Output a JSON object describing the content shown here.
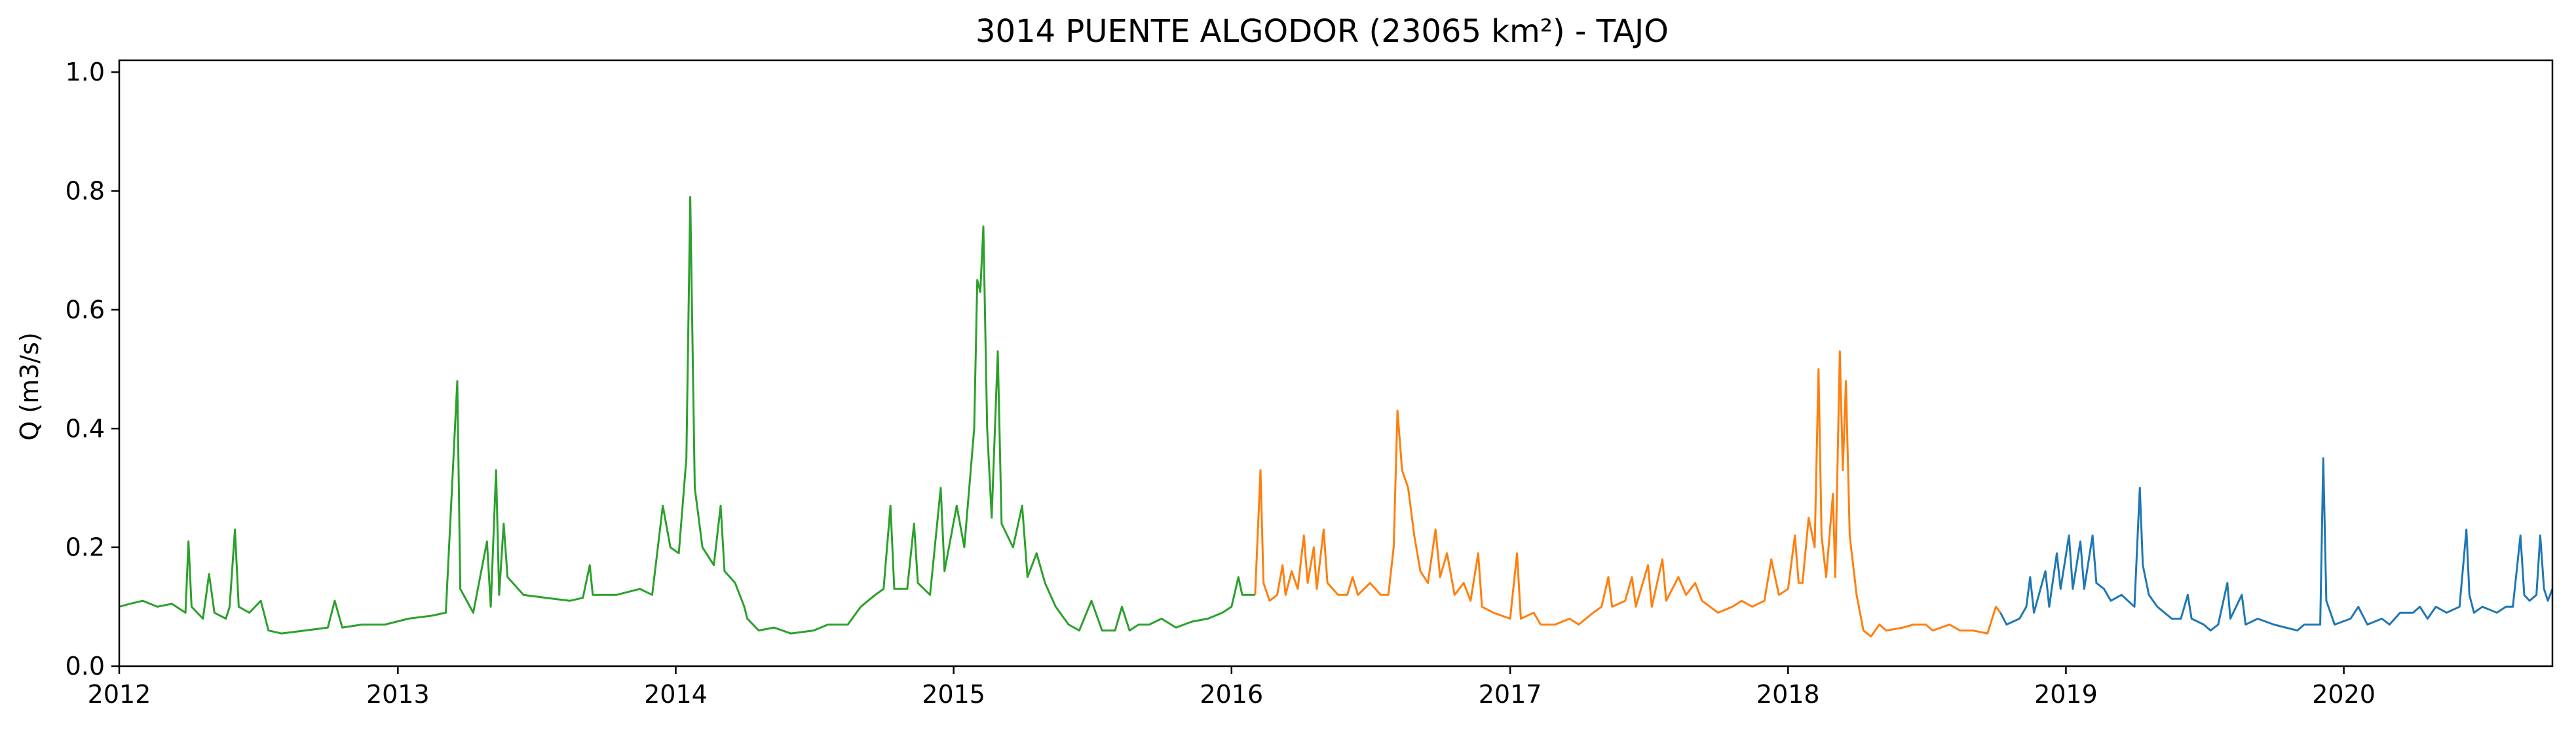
{
  "chart_data": {
    "type": "line",
    "title": "3014 PUENTE ALGODOR (23065 km²) - TAJO",
    "xlabel": "",
    "ylabel": "Q (m3/s)",
    "xlim": [
      "2012-01-01",
      "2020-10-01"
    ],
    "ylim": [
      0.0,
      1.02
    ],
    "x_ticks": [
      "2012",
      "2013",
      "2014",
      "2015",
      "2016",
      "2017",
      "2018",
      "2019",
      "2020"
    ],
    "y_ticks": [
      "0.0",
      "0.2",
      "0.4",
      "0.6",
      "0.8",
      "1.0"
    ],
    "grid": false,
    "legend": "none",
    "series": [
      {
        "color": "#2ca02c",
        "points": [
          [
            "2012-01-01",
            0.1
          ],
          [
            "2012-01-15",
            0.105
          ],
          [
            "2012-02-01",
            0.11
          ],
          [
            "2012-02-20",
            0.1
          ],
          [
            "2012-03-10",
            0.105
          ],
          [
            "2012-03-28",
            0.09
          ],
          [
            "2012-04-01",
            0.21
          ],
          [
            "2012-04-05",
            0.1
          ],
          [
            "2012-04-20",
            0.08
          ],
          [
            "2012-04-28",
            0.155
          ],
          [
            "2012-05-05",
            0.09
          ],
          [
            "2012-05-20",
            0.08
          ],
          [
            "2012-05-25",
            0.1
          ],
          [
            "2012-06-01",
            0.23
          ],
          [
            "2012-06-06",
            0.1
          ],
          [
            "2012-06-20",
            0.09
          ],
          [
            "2012-07-05",
            0.11
          ],
          [
            "2012-07-15",
            0.06
          ],
          [
            "2012-08-01",
            0.055
          ],
          [
            "2012-09-01",
            0.06
          ],
          [
            "2012-10-01",
            0.065
          ],
          [
            "2012-10-10",
            0.11
          ],
          [
            "2012-10-20",
            0.065
          ],
          [
            "2012-11-15",
            0.07
          ],
          [
            "2012-12-15",
            0.07
          ],
          [
            "2013-01-15",
            0.08
          ],
          [
            "2013-02-15",
            0.085
          ],
          [
            "2013-03-05",
            0.09
          ],
          [
            "2013-03-20",
            0.48
          ],
          [
            "2013-03-24",
            0.13
          ],
          [
            "2013-04-10",
            0.09
          ],
          [
            "2013-04-28",
            0.21
          ],
          [
            "2013-05-03",
            0.1
          ],
          [
            "2013-05-10",
            0.33
          ],
          [
            "2013-05-14",
            0.12
          ],
          [
            "2013-05-20",
            0.24
          ],
          [
            "2013-05-25",
            0.15
          ],
          [
            "2013-06-15",
            0.12
          ],
          [
            "2013-07-15",
            0.115
          ],
          [
            "2013-08-15",
            0.11
          ],
          [
            "2013-09-01",
            0.115
          ],
          [
            "2013-09-10",
            0.17
          ],
          [
            "2013-09-14",
            0.12
          ],
          [
            "2013-10-15",
            0.12
          ],
          [
            "2013-11-15",
            0.13
          ],
          [
            "2013-12-01",
            0.12
          ],
          [
            "2013-12-15",
            0.27
          ],
          [
            "2013-12-25",
            0.2
          ],
          [
            "2014-01-05",
            0.19
          ],
          [
            "2014-01-15",
            0.35
          ],
          [
            "2014-01-20",
            0.79
          ],
          [
            "2014-01-26",
            0.3
          ],
          [
            "2014-02-05",
            0.2
          ],
          [
            "2014-02-20",
            0.17
          ],
          [
            "2014-03-01",
            0.27
          ],
          [
            "2014-03-06",
            0.16
          ],
          [
            "2014-03-20",
            0.14
          ],
          [
            "2014-04-01",
            0.1
          ],
          [
            "2014-04-05",
            0.08
          ],
          [
            "2014-04-20",
            0.06
          ],
          [
            "2014-05-10",
            0.065
          ],
          [
            "2014-06-01",
            0.055
          ],
          [
            "2014-07-01",
            0.06
          ],
          [
            "2014-07-20",
            0.07
          ],
          [
            "2014-08-15",
            0.07
          ],
          [
            "2014-09-01",
            0.1
          ],
          [
            "2014-09-20",
            0.12
          ],
          [
            "2014-10-01",
            0.13
          ],
          [
            "2014-10-10",
            0.27
          ],
          [
            "2014-10-15",
            0.13
          ],
          [
            "2014-11-01",
            0.13
          ],
          [
            "2014-11-10",
            0.24
          ],
          [
            "2014-11-15",
            0.14
          ],
          [
            "2014-12-01",
            0.12
          ],
          [
            "2014-12-15",
            0.3
          ],
          [
            "2014-12-20",
            0.16
          ],
          [
            "2015-01-05",
            0.27
          ],
          [
            "2015-01-15",
            0.2
          ],
          [
            "2015-01-28",
            0.4
          ],
          [
            "2015-02-01",
            0.65
          ],
          [
            "2015-02-05",
            0.63
          ],
          [
            "2015-02-09",
            0.74
          ],
          [
            "2015-02-14",
            0.4
          ],
          [
            "2015-02-20",
            0.25
          ],
          [
            "2015-02-28",
            0.53
          ],
          [
            "2015-03-05",
            0.24
          ],
          [
            "2015-03-20",
            0.2
          ],
          [
            "2015-04-01",
            0.27
          ],
          [
            "2015-04-08",
            0.15
          ],
          [
            "2015-04-20",
            0.19
          ],
          [
            "2015-05-01",
            0.14
          ],
          [
            "2015-05-15",
            0.1
          ],
          [
            "2015-06-01",
            0.07
          ],
          [
            "2015-06-15",
            0.06
          ],
          [
            "2015-07-01",
            0.11
          ],
          [
            "2015-07-15",
            0.06
          ],
          [
            "2015-08-01",
            0.06
          ],
          [
            "2015-08-10",
            0.1
          ],
          [
            "2015-08-20",
            0.06
          ],
          [
            "2015-09-01",
            0.07
          ],
          [
            "2015-09-15",
            0.07
          ],
          [
            "2015-10-01",
            0.08
          ],
          [
            "2015-10-20",
            0.065
          ],
          [
            "2015-11-10",
            0.075
          ],
          [
            "2015-12-01",
            0.08
          ],
          [
            "2015-12-20",
            0.09
          ],
          [
            "2016-01-01",
            0.1
          ],
          [
            "2016-01-10",
            0.15
          ],
          [
            "2016-01-15",
            0.12
          ],
          [
            "2016-02-01",
            0.12
          ]
        ]
      },
      {
        "color": "#ff7f0e",
        "points": [
          [
            "2016-02-01",
            0.12
          ],
          [
            "2016-02-08",
            0.33
          ],
          [
            "2016-02-12",
            0.14
          ],
          [
            "2016-02-20",
            0.11
          ],
          [
            "2016-03-01",
            0.12
          ],
          [
            "2016-03-08",
            0.17
          ],
          [
            "2016-03-12",
            0.12
          ],
          [
            "2016-03-20",
            0.16
          ],
          [
            "2016-03-28",
            0.13
          ],
          [
            "2016-04-05",
            0.22
          ],
          [
            "2016-04-10",
            0.14
          ],
          [
            "2016-04-18",
            0.2
          ],
          [
            "2016-04-22",
            0.13
          ],
          [
            "2016-05-01",
            0.23
          ],
          [
            "2016-05-06",
            0.14
          ],
          [
            "2016-05-20",
            0.12
          ],
          [
            "2016-06-01",
            0.12
          ],
          [
            "2016-06-08",
            0.15
          ],
          [
            "2016-06-15",
            0.12
          ],
          [
            "2016-07-01",
            0.14
          ],
          [
            "2016-07-15",
            0.12
          ],
          [
            "2016-07-25",
            0.12
          ],
          [
            "2016-08-01",
            0.2
          ],
          [
            "2016-08-06",
            0.43
          ],
          [
            "2016-08-12",
            0.33
          ],
          [
            "2016-08-20",
            0.3
          ],
          [
            "2016-08-28",
            0.22
          ],
          [
            "2016-09-05",
            0.16
          ],
          [
            "2016-09-15",
            0.14
          ],
          [
            "2016-09-25",
            0.23
          ],
          [
            "2016-10-01",
            0.15
          ],
          [
            "2016-10-10",
            0.19
          ],
          [
            "2016-10-20",
            0.12
          ],
          [
            "2016-11-01",
            0.14
          ],
          [
            "2016-11-10",
            0.11
          ],
          [
            "2016-11-20",
            0.19
          ],
          [
            "2016-11-25",
            0.1
          ],
          [
            "2016-12-10",
            0.09
          ],
          [
            "2017-01-01",
            0.08
          ],
          [
            "2017-01-10",
            0.19
          ],
          [
            "2017-01-15",
            0.08
          ],
          [
            "2017-02-01",
            0.09
          ],
          [
            "2017-02-10",
            0.07
          ],
          [
            "2017-03-01",
            0.07
          ],
          [
            "2017-03-20",
            0.08
          ],
          [
            "2017-04-01",
            0.07
          ],
          [
            "2017-04-20",
            0.09
          ],
          [
            "2017-05-01",
            0.1
          ],
          [
            "2017-05-10",
            0.15
          ],
          [
            "2017-05-15",
            0.1
          ],
          [
            "2017-06-01",
            0.11
          ],
          [
            "2017-06-10",
            0.15
          ],
          [
            "2017-06-15",
            0.1
          ],
          [
            "2017-07-01",
            0.17
          ],
          [
            "2017-07-06",
            0.1
          ],
          [
            "2017-07-20",
            0.18
          ],
          [
            "2017-07-25",
            0.11
          ],
          [
            "2017-08-10",
            0.15
          ],
          [
            "2017-08-20",
            0.12
          ],
          [
            "2017-09-01",
            0.14
          ],
          [
            "2017-09-10",
            0.11
          ],
          [
            "2017-10-01",
            0.09
          ],
          [
            "2017-10-20",
            0.1
          ],
          [
            "2017-11-01",
            0.11
          ],
          [
            "2017-11-15",
            0.1
          ],
          [
            "2017-12-01",
            0.11
          ],
          [
            "2017-12-10",
            0.18
          ],
          [
            "2017-12-20",
            0.12
          ],
          [
            "2018-01-01",
            0.13
          ],
          [
            "2018-01-10",
            0.22
          ],
          [
            "2018-01-15",
            0.14
          ],
          [
            "2018-01-20",
            0.14
          ],
          [
            "2018-01-28",
            0.25
          ],
          [
            "2018-02-05",
            0.2
          ],
          [
            "2018-02-10",
            0.5
          ],
          [
            "2018-02-14",
            0.22
          ],
          [
            "2018-02-20",
            0.15
          ],
          [
            "2018-03-01",
            0.29
          ],
          [
            "2018-03-04",
            0.15
          ],
          [
            "2018-03-10",
            0.53
          ],
          [
            "2018-03-14",
            0.33
          ],
          [
            "2018-03-18",
            0.48
          ],
          [
            "2018-03-23",
            0.22
          ],
          [
            "2018-04-01",
            0.12
          ],
          [
            "2018-04-10",
            0.06
          ],
          [
            "2018-04-20",
            0.05
          ],
          [
            "2018-05-01",
            0.07
          ],
          [
            "2018-05-10",
            0.06
          ],
          [
            "2018-06-01",
            0.065
          ],
          [
            "2018-06-15",
            0.07
          ],
          [
            "2018-07-01",
            0.07
          ],
          [
            "2018-07-10",
            0.06
          ],
          [
            "2018-08-01",
            0.07
          ],
          [
            "2018-08-15",
            0.06
          ],
          [
            "2018-09-01",
            0.06
          ],
          [
            "2018-09-20",
            0.055
          ],
          [
            "2018-10-01",
            0.1
          ],
          [
            "2018-10-07",
            0.09
          ]
        ]
      },
      {
        "color": "#1f77b4",
        "points": [
          [
            "2018-10-07",
            0.09
          ],
          [
            "2018-10-15",
            0.07
          ],
          [
            "2018-11-01",
            0.08
          ],
          [
            "2018-11-10",
            0.1
          ],
          [
            "2018-11-15",
            0.15
          ],
          [
            "2018-11-20",
            0.09
          ],
          [
            "2018-12-05",
            0.16
          ],
          [
            "2018-12-10",
            0.1
          ],
          [
            "2018-12-20",
            0.19
          ],
          [
            "2018-12-25",
            0.13
          ],
          [
            "2019-01-05",
            0.22
          ],
          [
            "2019-01-10",
            0.13
          ],
          [
            "2019-01-20",
            0.21
          ],
          [
            "2019-01-25",
            0.13
          ],
          [
            "2019-02-05",
            0.22
          ],
          [
            "2019-02-10",
            0.14
          ],
          [
            "2019-02-20",
            0.13
          ],
          [
            "2019-03-01",
            0.11
          ],
          [
            "2019-03-15",
            0.12
          ],
          [
            "2019-04-01",
            0.1
          ],
          [
            "2019-04-08",
            0.3
          ],
          [
            "2019-04-12",
            0.17
          ],
          [
            "2019-04-20",
            0.12
          ],
          [
            "2019-05-01",
            0.1
          ],
          [
            "2019-05-20",
            0.08
          ],
          [
            "2019-06-01",
            0.08
          ],
          [
            "2019-06-10",
            0.12
          ],
          [
            "2019-06-15",
            0.08
          ],
          [
            "2019-07-01",
            0.07
          ],
          [
            "2019-07-10",
            0.06
          ],
          [
            "2019-07-20",
            0.07
          ],
          [
            "2019-08-01",
            0.14
          ],
          [
            "2019-08-05",
            0.08
          ],
          [
            "2019-08-20",
            0.12
          ],
          [
            "2019-08-25",
            0.07
          ],
          [
            "2019-09-10",
            0.08
          ],
          [
            "2019-10-01",
            0.07
          ],
          [
            "2019-11-01",
            0.06
          ],
          [
            "2019-11-10",
            0.07
          ],
          [
            "2019-12-01",
            0.07
          ],
          [
            "2019-12-05",
            0.35
          ],
          [
            "2019-12-09",
            0.11
          ],
          [
            "2019-12-20",
            0.07
          ],
          [
            "2020-01-10",
            0.08
          ],
          [
            "2020-01-20",
            0.1
          ],
          [
            "2020-02-01",
            0.07
          ],
          [
            "2020-02-20",
            0.08
          ],
          [
            "2020-03-01",
            0.07
          ],
          [
            "2020-03-15",
            0.09
          ],
          [
            "2020-04-01",
            0.09
          ],
          [
            "2020-04-10",
            0.1
          ],
          [
            "2020-04-20",
            0.08
          ],
          [
            "2020-05-01",
            0.1
          ],
          [
            "2020-05-15",
            0.09
          ],
          [
            "2020-06-01",
            0.1
          ],
          [
            "2020-06-10",
            0.23
          ],
          [
            "2020-06-14",
            0.12
          ],
          [
            "2020-06-20",
            0.09
          ],
          [
            "2020-07-01",
            0.1
          ],
          [
            "2020-07-20",
            0.09
          ],
          [
            "2020-08-01",
            0.1
          ],
          [
            "2020-08-10",
            0.1
          ],
          [
            "2020-08-20",
            0.22
          ],
          [
            "2020-08-25",
            0.12
          ],
          [
            "2020-09-01",
            0.11
          ],
          [
            "2020-09-10",
            0.12
          ],
          [
            "2020-09-15",
            0.22
          ],
          [
            "2020-09-20",
            0.13
          ],
          [
            "2020-09-25",
            0.11
          ],
          [
            "2020-10-01",
            0.13
          ]
        ]
      }
    ]
  }
}
